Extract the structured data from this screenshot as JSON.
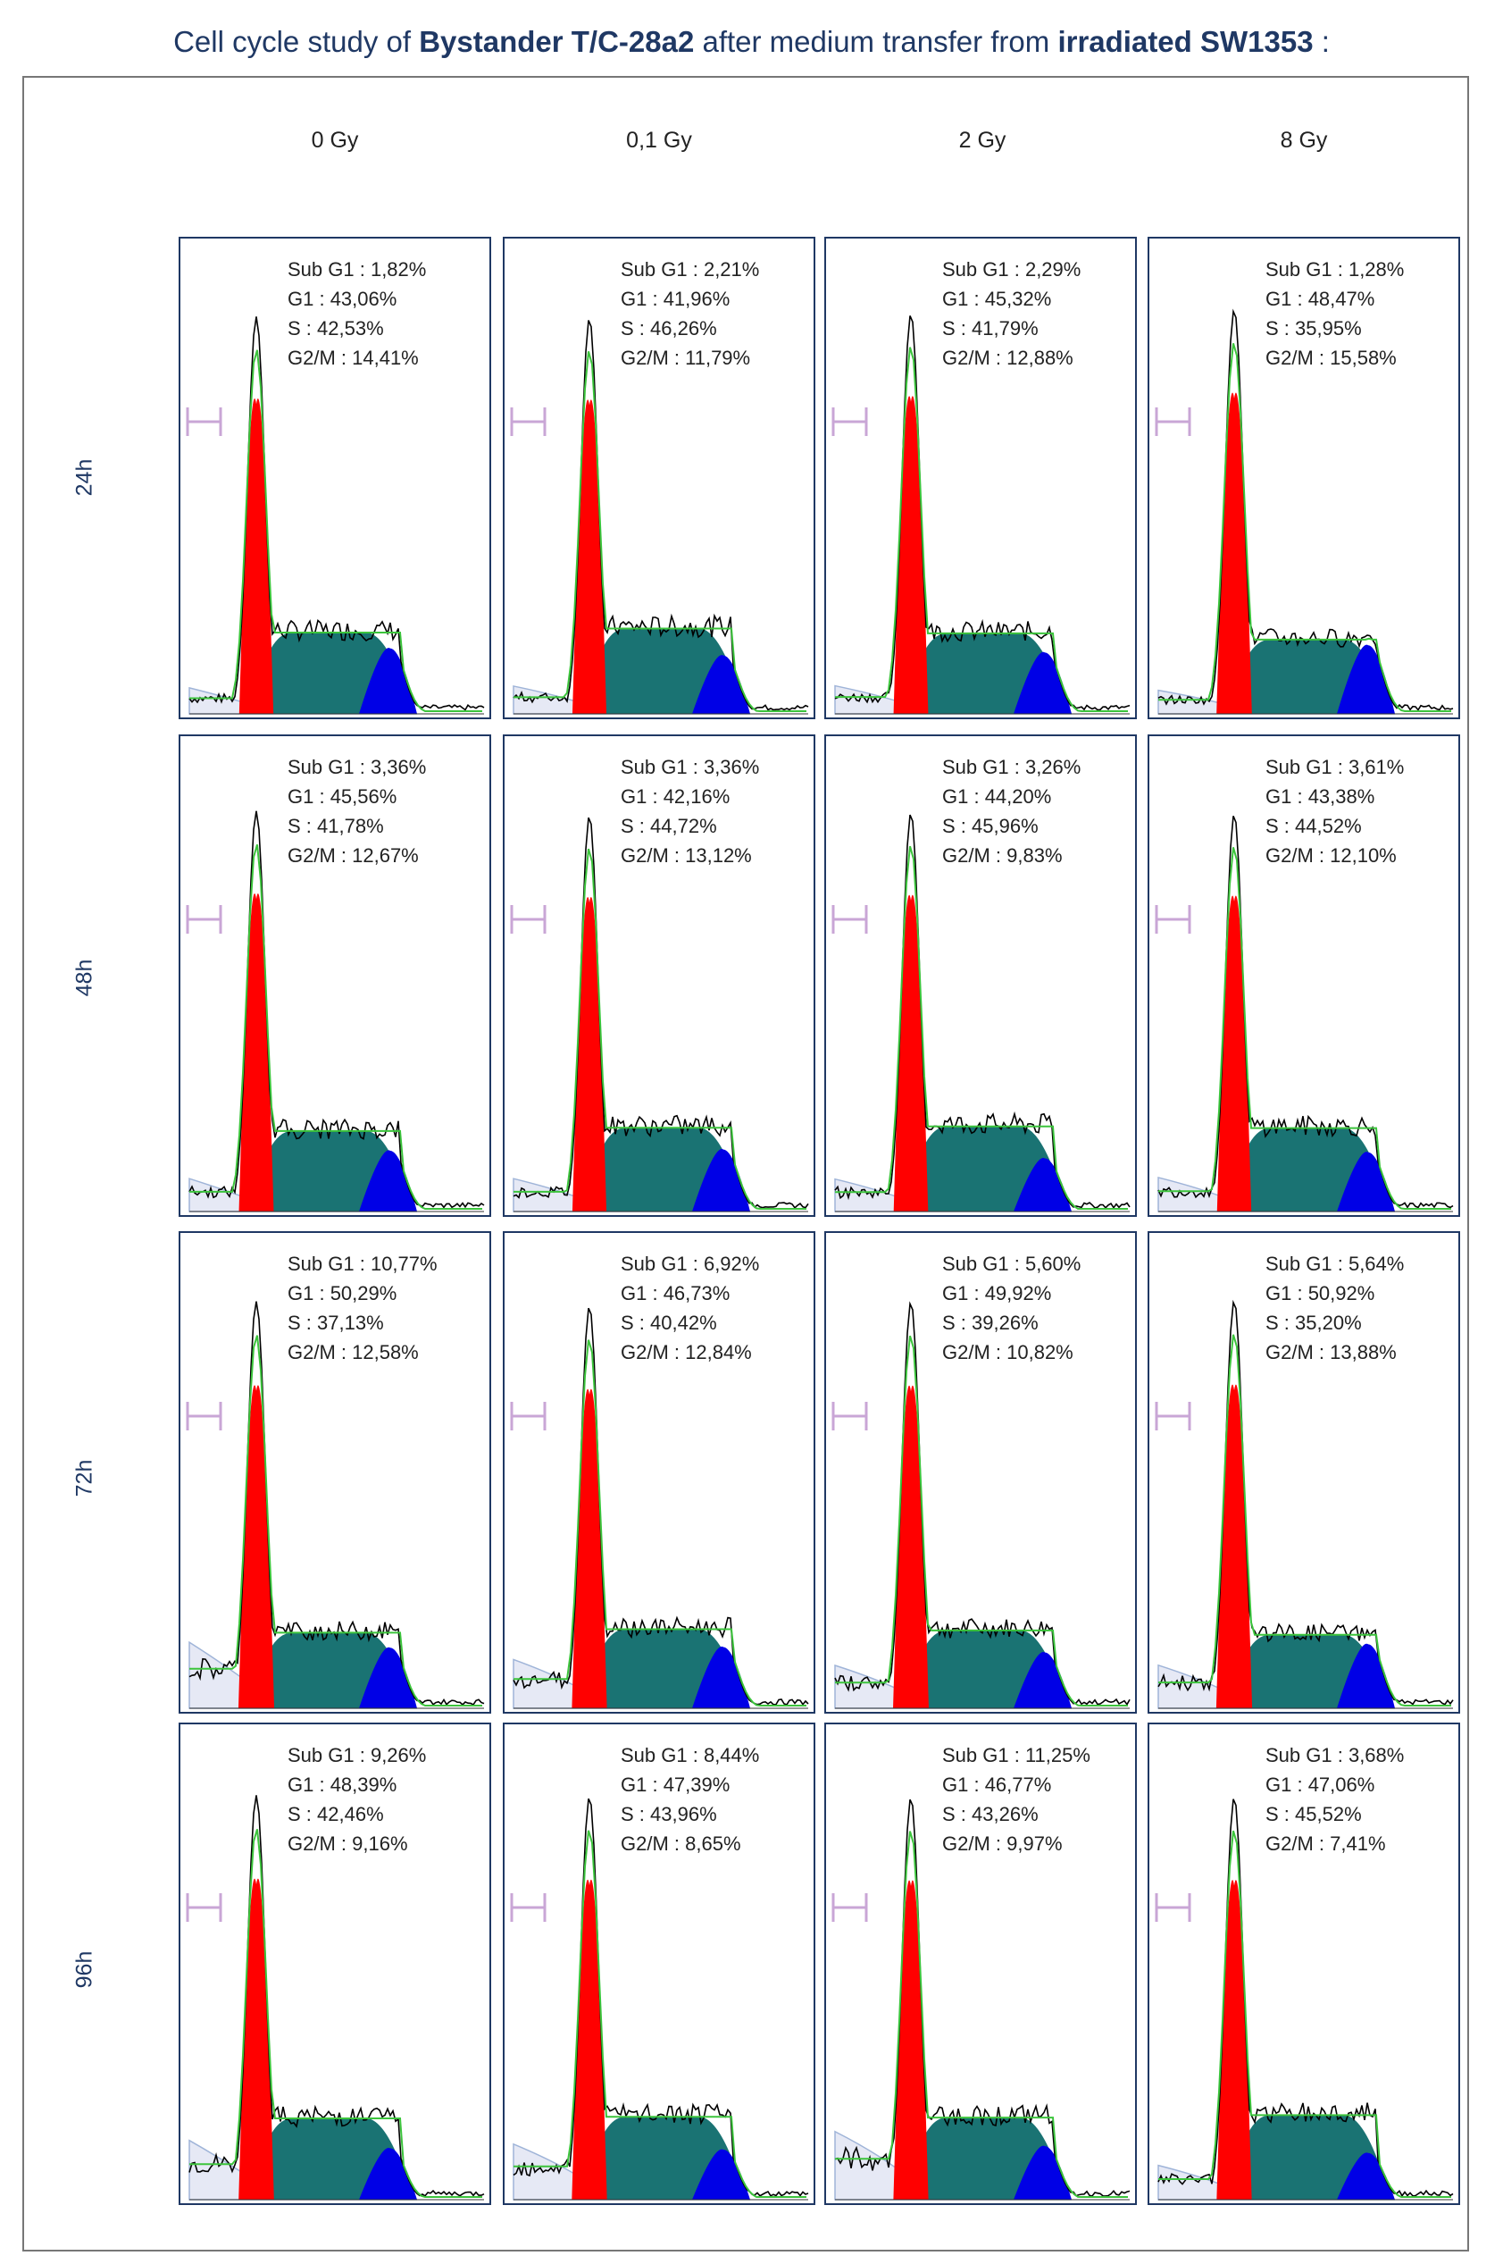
{
  "title": {
    "prefix": "Cell cycle study of ",
    "bold1": "Bystander T/C-28a2",
    "middle": " after medium transfer  from ",
    "bold2": "irradiated SW1353",
    "suffix": " :"
  },
  "colors": {
    "sub_g1": "#c9a6d6",
    "g1": "#ff0000",
    "s": "#1a7373",
    "g2m": "#0000e6",
    "debris": "#e6e9f5",
    "fit": "#3cc43c",
    "raw": "#000000",
    "frame": "#1f3864"
  },
  "chart_data": {
    "type": "histogram-grid",
    "columns": [
      "0 Gy",
      "0,1 Gy",
      "2 Gy",
      "8 Gy"
    ],
    "rows": [
      "24h",
      "48h",
      "72h",
      "96h"
    ],
    "stat_labels": {
      "sub_g1": "Sub G1 : ",
      "g1": "G1 : ",
      "s": "S : ",
      "g2m": "G2/M : "
    },
    "panels": [
      [
        {
          "sub_g1": "1,82%",
          "g1": "43,06%",
          "s": "42,53%",
          "g2m": "14,41%"
        },
        {
          "sub_g1": "2,21%",
          "g1": "41,96%",
          "s": "46,26%",
          "g2m": "11,79%"
        },
        {
          "sub_g1": "2,29%",
          "g1": "45,32%",
          "s": "41,79%",
          "g2m": "12,88%"
        },
        {
          "sub_g1": "1,28%",
          "g1": "48,47%",
          "s": "35,95%",
          "g2m": "15,58%"
        }
      ],
      [
        {
          "sub_g1": "3,36%",
          "g1": "45,56%",
          "s": "41,78%",
          "g2m": "12,67%"
        },
        {
          "sub_g1": "3,36%",
          "g1": "42,16%",
          "s": "44,72%",
          "g2m": "13,12%"
        },
        {
          "sub_g1": "3,26%",
          "g1": "44,20%",
          "s": "45,96%",
          "g2m": "9,83%"
        },
        {
          "sub_g1": "3,61%",
          "g1": "43,38%",
          "s": "44,52%",
          "g2m": "12,10%"
        }
      ],
      [
        {
          "sub_g1": "10,77%",
          "g1": "50,29%",
          "s": "37,13%",
          "g2m": "12,58%"
        },
        {
          "sub_g1": "6,92%",
          "g1": "46,73%",
          "s": "40,42%",
          "g2m": "12,84%"
        },
        {
          "sub_g1": "5,60%",
          "g1": "49,92%",
          "s": "39,26%",
          "g2m": "10,82%"
        },
        {
          "sub_g1": "5,64%",
          "g1": "50,92%",
          "s": "35,20%",
          "g2m": "13,88%"
        }
      ],
      [
        {
          "sub_g1": "9,26%",
          "g1": "48,39%",
          "s": "42,46%",
          "g2m": "9,16%"
        },
        {
          "sub_g1": "8,44%",
          "g1": "47,39%",
          "s": "43,96%",
          "g2m": "8,65%"
        },
        {
          "sub_g1": "11,25%",
          "g1": "46,77%",
          "s": "43,26%",
          "g2m": "9,97%"
        },
        {
          "sub_g1": "3,68%",
          "g1": "47,06%",
          "s": "45,52%",
          "g2m": "7,41%"
        }
      ]
    ]
  }
}
